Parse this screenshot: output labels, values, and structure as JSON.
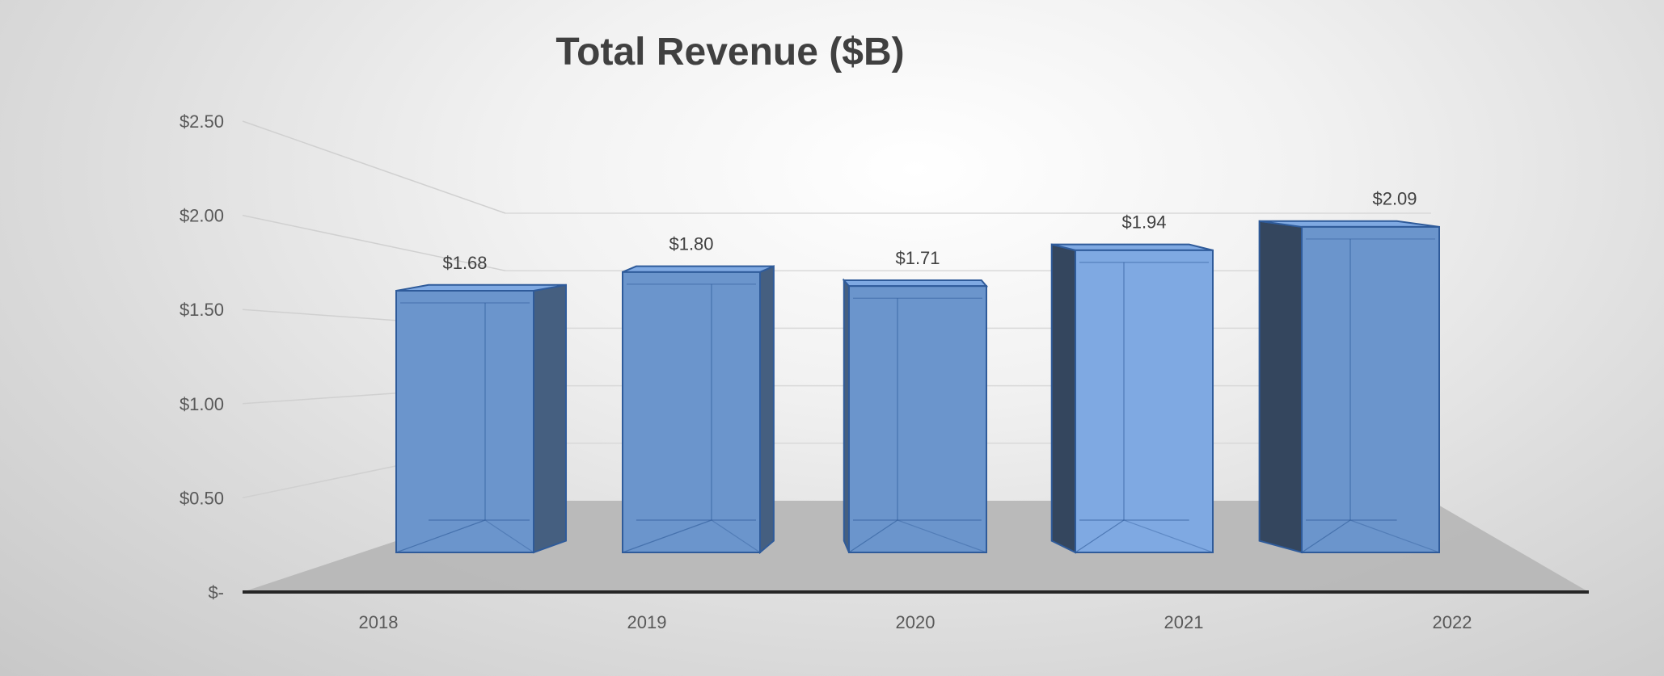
{
  "colors": {
    "bar_front": "#6b95cc",
    "bar_front_highlight": "#7fa9e2",
    "bar_side": "#455f80",
    "bar_side_dark": "#34465e",
    "bar_edge": "#2f5b9a",
    "floor": "#b7b7b7",
    "axis": "#262626",
    "grid": "#d9d9d9"
  },
  "chart_data": {
    "type": "bar",
    "title": "Total Revenue ($B)",
    "categories": [
      "2018",
      "2019",
      "2020",
      "2021",
      "2022"
    ],
    "values": [
      1.68,
      1.8,
      1.71,
      1.94,
      2.09
    ],
    "data_labels": [
      "$1.68",
      "$1.80",
      "$1.71",
      "$1.94",
      "$2.09"
    ],
    "y_ticks": [
      0,
      0.5,
      1.0,
      1.5,
      2.0,
      2.5
    ],
    "y_tick_labels": [
      "$-",
      "$0.50",
      "$1.00",
      "$1.50",
      "$2.00",
      "$2.50"
    ],
    "ylim": [
      0,
      2.5
    ],
    "xlabel": "",
    "ylabel": "",
    "grid": true,
    "legend": "none",
    "style": "3d-perspective"
  }
}
